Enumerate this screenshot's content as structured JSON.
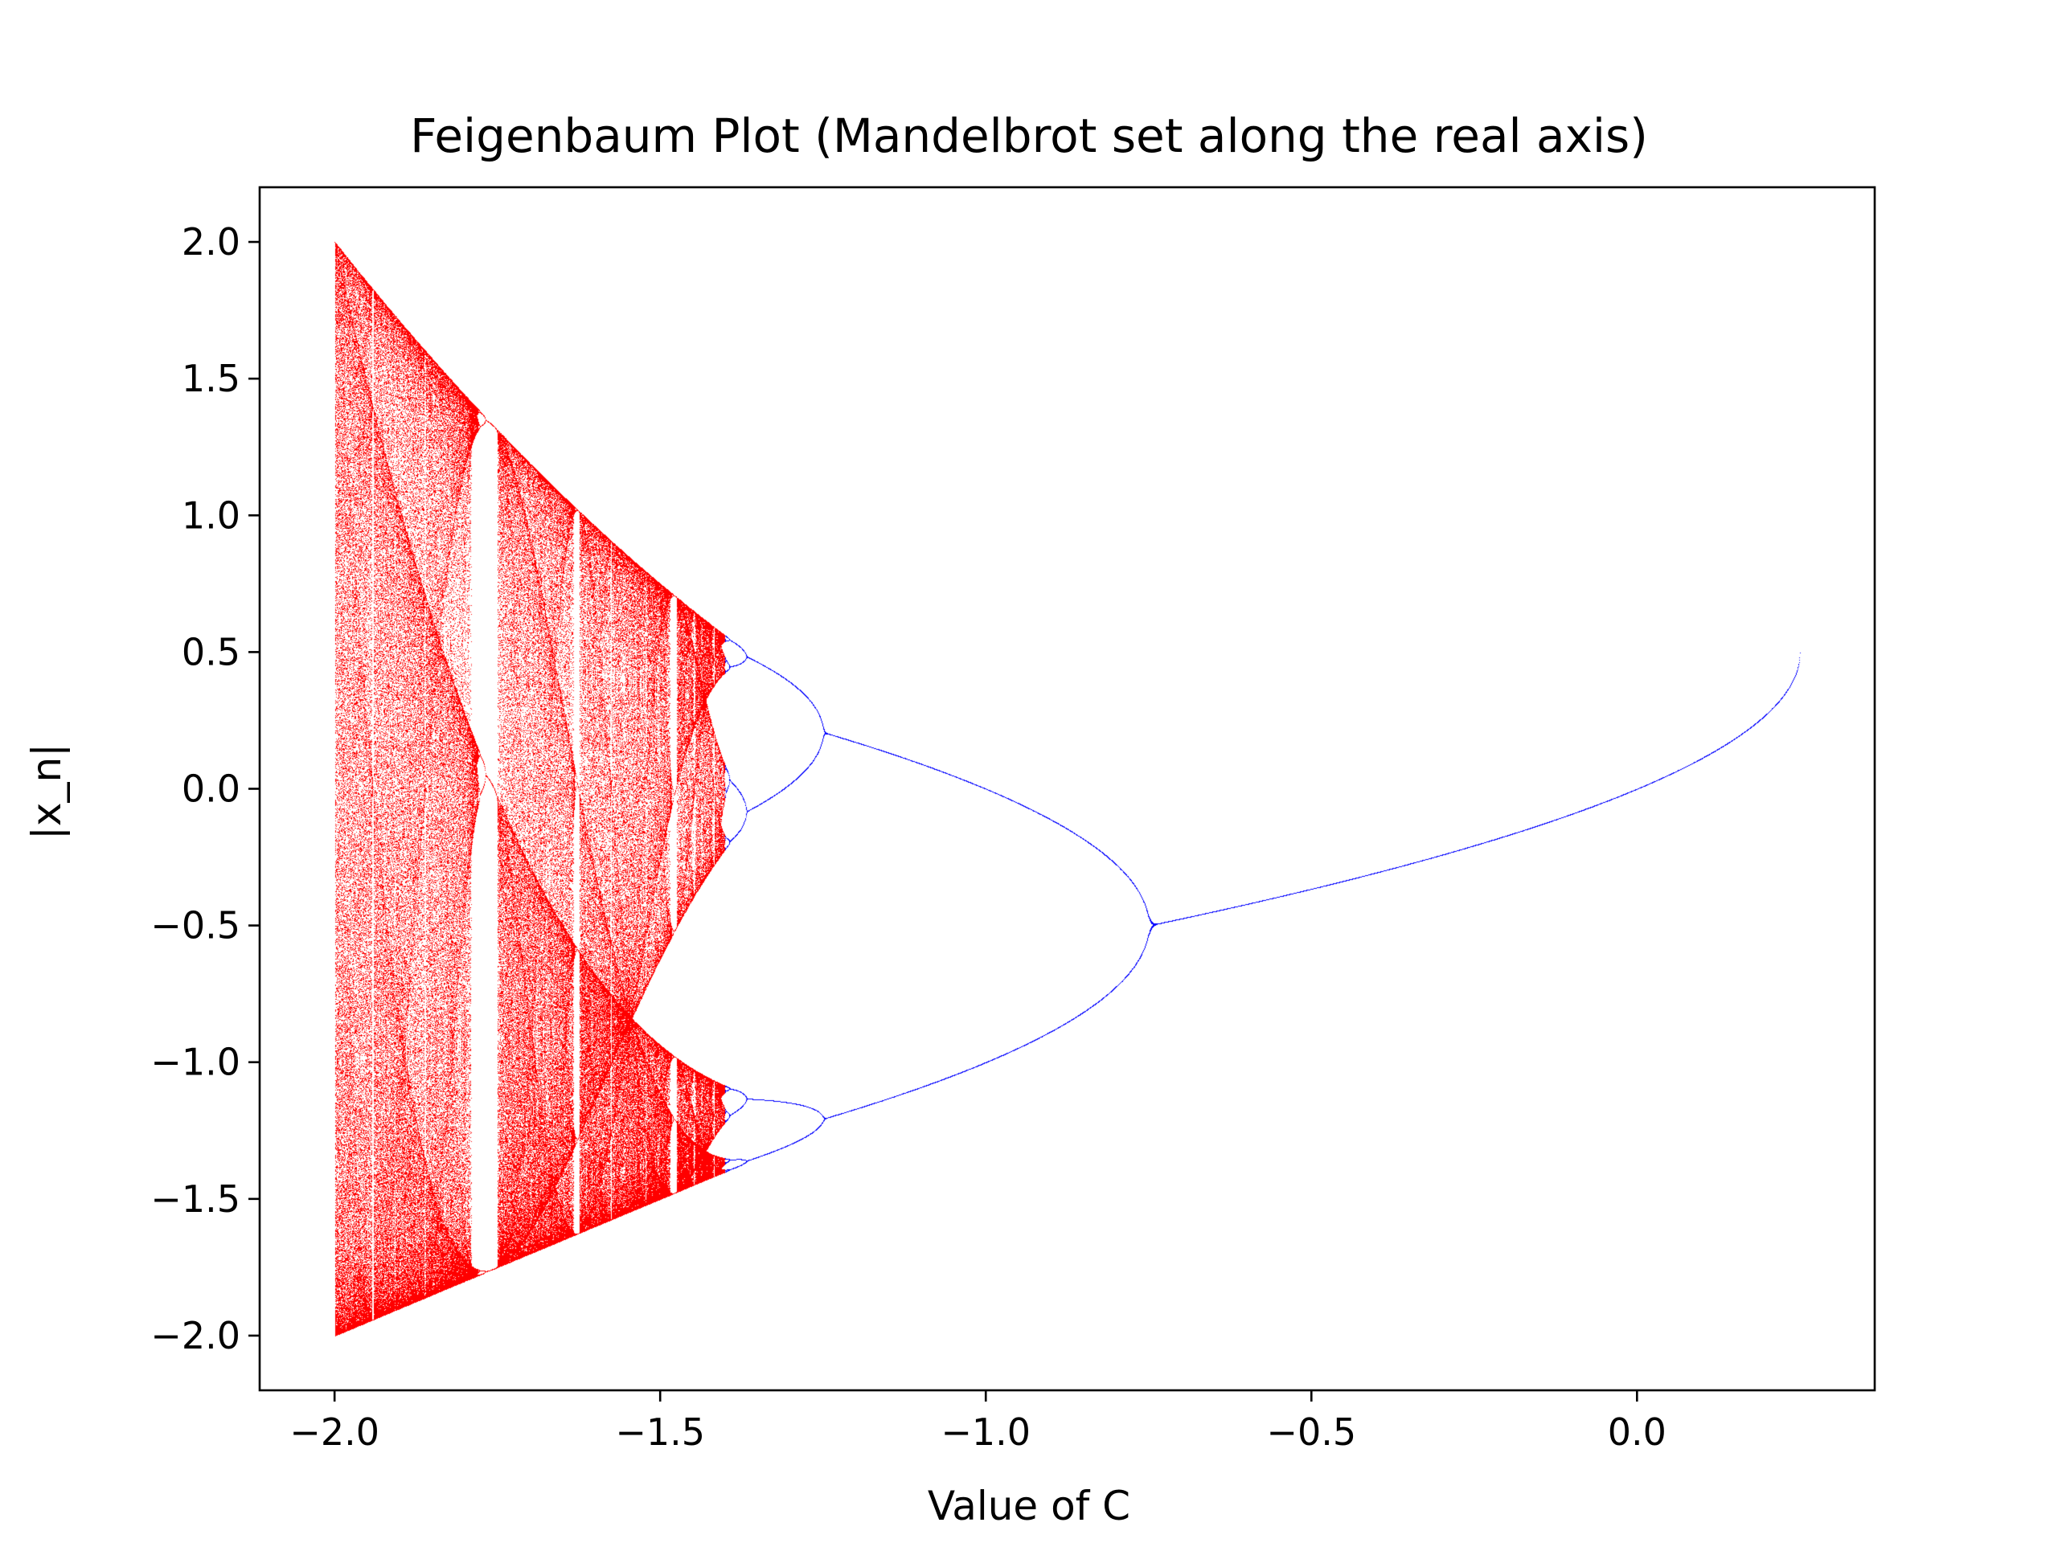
{
  "chart_data": {
    "type": "scatter",
    "title": "Feigenbaum Plot (Mandelbrot set along the real axis)",
    "xlabel": "Value of C",
    "ylabel": "|x_n|",
    "xlim": [
      -2.115,
      0.365
    ],
    "ylim": [
      -2.2,
      2.2
    ],
    "xticks": [
      -2.0,
      -1.5,
      -1.0,
      -0.5,
      0.0
    ],
    "xtick_labels": [
      "−2.0",
      "−1.5",
      "−1.0",
      "−0.5",
      "0.0"
    ],
    "yticks": [
      2.0,
      1.5,
      1.0,
      0.5,
      0.0,
      -0.5,
      -1.0,
      -1.5,
      -2.0
    ],
    "ytick_labels": [
      "2.0",
      "1.5",
      "1.0",
      "0.5",
      "0.0",
      "−0.5",
      "−1.0",
      "−1.5",
      "−2.0"
    ],
    "grid": false,
    "legend": "none",
    "c_range": [
      -2.0,
      0.25
    ],
    "series": [
      {
        "region": "chaotic",
        "c_range": [
          -2.0,
          -1.401
        ],
        "color": "#ff0000"
      },
      {
        "region": "periodic",
        "c_range": [
          -1.401,
          0.25
        ],
        "color": "#0000ff"
      }
    ]
  }
}
